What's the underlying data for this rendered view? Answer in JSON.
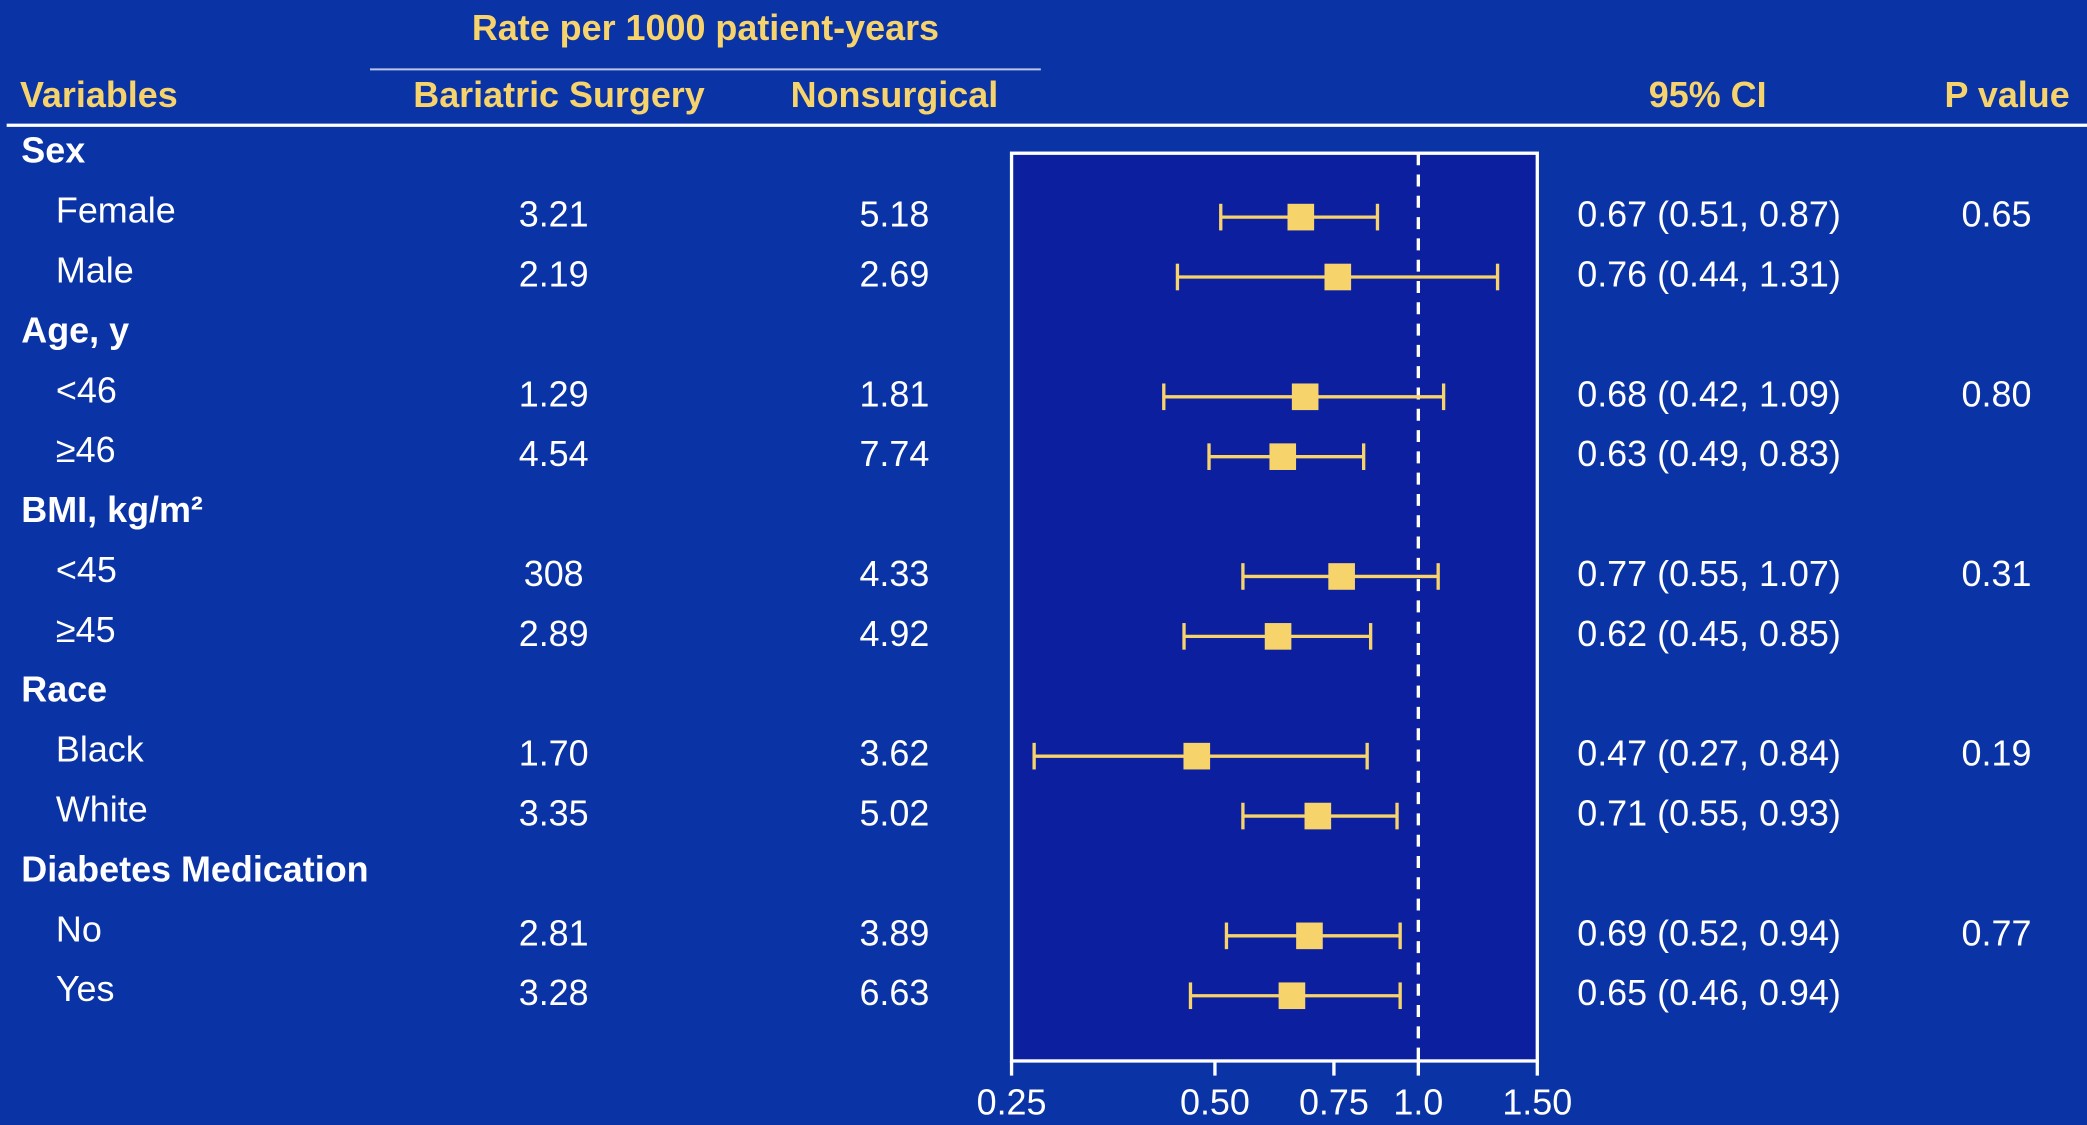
{
  "chart_data": {
    "type": "forest",
    "title": "Rate per 1000 patient-years",
    "columns": [
      "Variables",
      "Bariatric Surgery",
      "Nonsurgical",
      "95% CI",
      "P value"
    ],
    "groups": [
      {
        "label": "Sex",
        "rows": [
          {
            "label": "Female",
            "surgery": "3.21",
            "nonsurgical": "5.18",
            "estimate": 0.67,
            "low": 0.51,
            "high": 0.87,
            "ci_label": "0.67 (0.51, 0.87)",
            "p": "0.65"
          },
          {
            "label": "Male",
            "surgery": "2.19",
            "nonsurgical": "2.69",
            "estimate": 0.76,
            "low": 0.44,
            "high": 1.31,
            "ci_label": "0.76 (0.44, 1.31)",
            "p": null
          }
        ]
      },
      {
        "label": "Age, y",
        "rows": [
          {
            "label": "<46",
            "surgery": "1.29",
            "nonsurgical": "1.81",
            "estimate": 0.68,
            "low": 0.42,
            "high": 1.09,
            "ci_label": "0.68 (0.42, 1.09)",
            "p": "0.80"
          },
          {
            "label": "≥46",
            "surgery": "4.54",
            "nonsurgical": "7.74",
            "estimate": 0.63,
            "low": 0.49,
            "high": 0.83,
            "ci_label": "0.63 (0.49, 0.83)",
            "p": null
          }
        ]
      },
      {
        "label": "BMI, kg/m²",
        "rows": [
          {
            "label": "<45",
            "surgery": "308",
            "nonsurgical": "4.33",
            "estimate": 0.77,
            "low": 0.55,
            "high": 1.07,
            "ci_label": "0.77 (0.55, 1.07)",
            "p": "0.31"
          },
          {
            "label": "≥45",
            "surgery": "2.89",
            "nonsurgical": "4.92",
            "estimate": 0.62,
            "low": 0.45,
            "high": 0.85,
            "ci_label": "0.62 (0.45, 0.85)",
            "p": null
          }
        ]
      },
      {
        "label": "Race",
        "rows": [
          {
            "label": "Black",
            "surgery": "1.70",
            "nonsurgical": "3.62",
            "estimate": 0.47,
            "low": 0.27,
            "high": 0.84,
            "ci_label": "0.47 (0.27, 0.84)",
            "p": "0.19"
          },
          {
            "label": "White",
            "surgery": "3.35",
            "nonsurgical": "5.02",
            "estimate": 0.71,
            "low": 0.55,
            "high": 0.93,
            "ci_label": "0.71 (0.55, 0.93)",
            "p": null
          }
        ]
      },
      {
        "label": "Diabetes Medication",
        "rows": [
          {
            "label": "No",
            "surgery": "2.81",
            "nonsurgical": "3.89",
            "estimate": 0.69,
            "low": 0.52,
            "high": 0.94,
            "ci_label": "0.69 (0.52, 0.94)",
            "p": "0.77"
          },
          {
            "label": "Yes",
            "surgery": "3.28",
            "nonsurgical": "6.63",
            "estimate": 0.65,
            "low": 0.46,
            "high": 0.94,
            "ci_label": "0.65 (0.46, 0.94)",
            "p": null
          }
        ]
      }
    ],
    "xlim": [
      0.25,
      1.5
    ],
    "xticks": [
      0.25,
      {
        "value": 0.5,
        "label": "0.50"
      },
      {
        "value": 0.75,
        "label": "0.75"
      },
      {
        "value": 1,
        "label": "1.0"
      },
      {
        "value": 1.5,
        "label": "1.50"
      }
    ],
    "log_x": true,
    "reference": 1,
    "color": "#f7d36b"
  }
}
